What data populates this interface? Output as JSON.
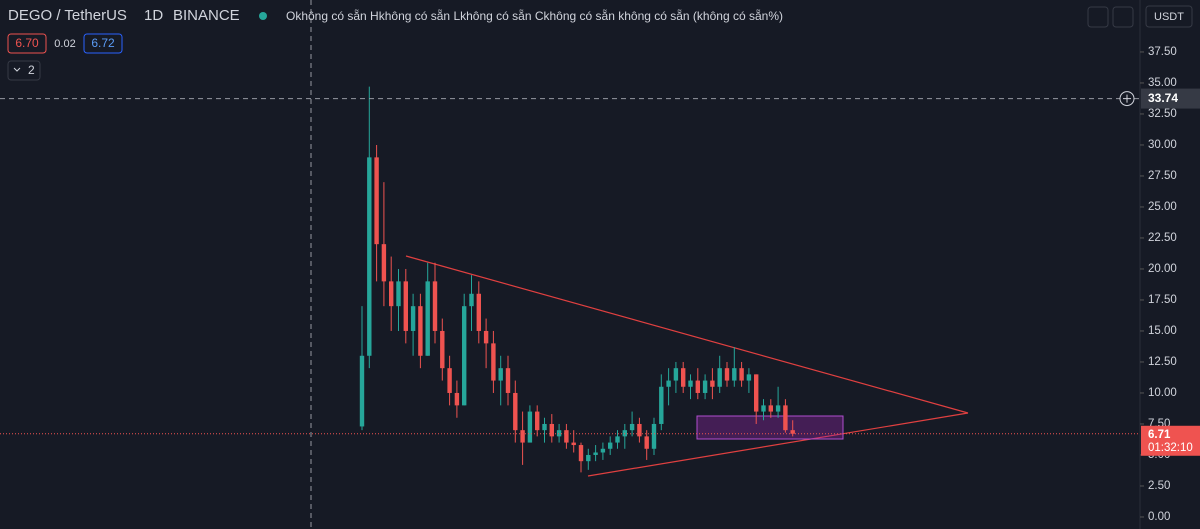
{
  "header": {
    "symbol": "DEGO / TetherUS",
    "interval": "1D",
    "exchange": "BINANCE",
    "ohlc_text": "Okhông có sẵn Hkhông có sẵn Lkhông có sẵn Ckhông có sẵn không có sẵn (không có sẵn%)",
    "sell": "6.70",
    "spread": "0.02",
    "buy": "6.72",
    "indicators": "2",
    "currency": "USDT",
    "countdown": "01:32:10"
  },
  "chart_data": {
    "type": "candlestick",
    "up_color": "#26a69a",
    "down_color": "#ef5350",
    "open": [
      7.3,
      13,
      29,
      22,
      19,
      17,
      19,
      15,
      17,
      13,
      19,
      15,
      12,
      10,
      9,
      17,
      18,
      15,
      14,
      11,
      12,
      10,
      7,
      6,
      8.5,
      7,
      7.5,
      6.5,
      7,
      6,
      5.8,
      4.5,
      5,
      5.2,
      5.5,
      6,
      6.5,
      7,
      7.5,
      6.5,
      5.5,
      7.5,
      10.5,
      11,
      12,
      10.5,
      11,
      10,
      11,
      10.5,
      12,
      11,
      12,
      11,
      11.5,
      8.5,
      9,
      8.5,
      9,
      7
    ],
    "high": [
      17,
      34.7,
      30,
      27,
      21,
      20,
      20,
      18,
      18,
      20.5,
      20.5,
      16,
      13,
      11,
      18,
      19.5,
      19,
      16,
      15,
      13,
      13,
      11,
      8.5,
      9,
      9,
      8,
      8.3,
      7.5,
      7.5,
      7,
      6,
      5.5,
      5.8,
      6,
      6.5,
      7,
      7.5,
      8.5,
      8,
      7,
      8,
      11.5,
      12,
      12.5,
      12.5,
      11.5,
      12,
      11.5,
      12,
      13,
      12.5,
      13.7,
      12.5,
      12,
      11.5,
      9.5,
      9.5,
      10.5,
      9.5,
      7.8
    ],
    "low": [
      7,
      12,
      19,
      17,
      15,
      15,
      14,
      13,
      12,
      13,
      14,
      11,
      9,
      8,
      9,
      15,
      14,
      12,
      10,
      9,
      9,
      6,
      4.2,
      6,
      6.5,
      6,
      6,
      6,
      5.5,
      5.2,
      3.6,
      3.8,
      4.5,
      4.6,
      5,
      5.5,
      5.5,
      6.5,
      6,
      4.6,
      5,
      7,
      9,
      10,
      10,
      9.5,
      9.5,
      9.5,
      9.5,
      10,
      10.5,
      10.5,
      10.5,
      10,
      7.5,
      7.8,
      8,
      8,
      6.8,
      6.5
    ],
    "close": [
      13,
      29,
      22,
      19,
      17,
      19,
      15,
      17,
      13,
      19,
      15,
      12,
      10,
      9,
      17,
      18,
      15,
      14,
      11,
      12,
      10,
      7,
      6,
      8.5,
      7,
      7.5,
      6.5,
      7,
      6,
      5.8,
      4.5,
      5,
      5.2,
      5.5,
      6,
      6.5,
      7,
      7.5,
      6.5,
      5.5,
      7.5,
      10.5,
      11,
      12,
      10.5,
      11,
      10,
      11,
      10.5,
      12,
      11,
      12,
      11,
      11.5,
      8.5,
      9,
      8.5,
      9,
      7,
      6.71
    ],
    "ylim": [
      -0.97,
      41.69
    ],
    "yticks": [
      {
        "value": 0,
        "label": "0.00"
      },
      {
        "value": 2.5,
        "label": "2.50"
      },
      {
        "value": 5,
        "label": "5.00"
      },
      {
        "value": 7.5,
        "label": "7.50"
      },
      {
        "value": 10,
        "label": "10.00"
      },
      {
        "value": 12.5,
        "label": "12.50"
      },
      {
        "value": 15,
        "label": "15.00"
      },
      {
        "value": 17.5,
        "label": "17.50"
      },
      {
        "value": 20,
        "label": "20.00"
      },
      {
        "value": 22.5,
        "label": "22.50"
      },
      {
        "value": 25,
        "label": "25.00"
      },
      {
        "value": 27.5,
        "label": "27.50"
      },
      {
        "value": 30,
        "label": "30.00"
      },
      {
        "value": 32.5,
        "label": "32.50"
      },
      {
        "value": 35,
        "label": "35.00"
      },
      {
        "value": 37.5,
        "label": "37.50"
      }
    ],
    "crosshair_price": 33.74,
    "last_price": 6.71
  }
}
